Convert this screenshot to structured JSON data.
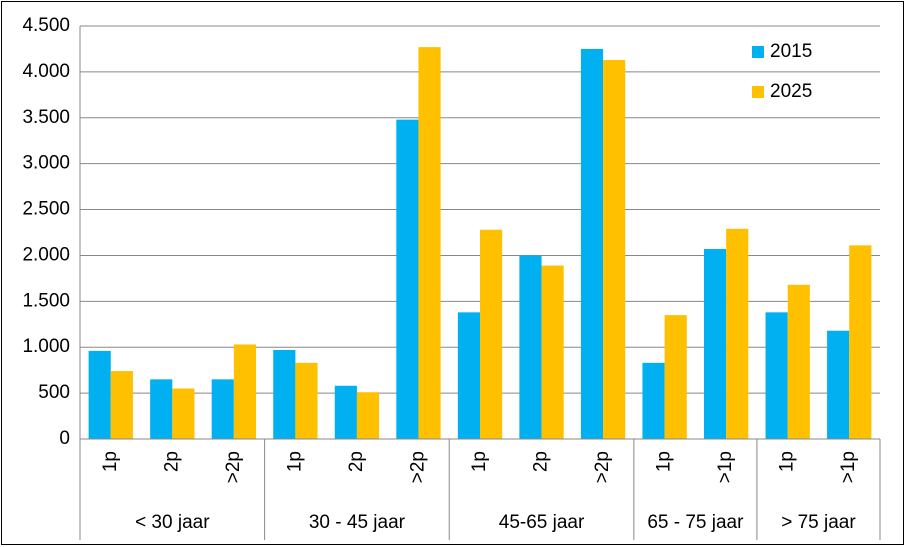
{
  "chart_data": {
    "type": "bar",
    "groups": [
      {
        "name": "< 30 jaar",
        "categories": [
          "1p",
          "2p",
          ">2p"
        ]
      },
      {
        "name": "30 - 45 jaar",
        "categories": [
          "1p",
          "2p",
          ">2p"
        ]
      },
      {
        "name": "45-65 jaar",
        "categories": [
          "1p",
          "2p",
          ">2p"
        ]
      },
      {
        "name": "65 - 75 jaar",
        "categories": [
          "1p",
          ">1p"
        ]
      },
      {
        "name": "> 75 jaar",
        "categories": [
          "1p",
          ">1p"
        ]
      }
    ],
    "series": [
      {
        "name": "2015",
        "color": "#00b0f0",
        "values": [
          960,
          650,
          650,
          970,
          580,
          3480,
          1380,
          2000,
          4250,
          830,
          2070,
          1380,
          1180
        ]
      },
      {
        "name": "2025",
        "color": "#ffc000",
        "values": [
          740,
          550,
          1030,
          830,
          510,
          4270,
          2280,
          1890,
          4130,
          1350,
          2290,
          1680,
          2110
        ]
      }
    ],
    "ylim": [
      0,
      4500
    ],
    "yticks": [
      0,
      500,
      {
        "value": 1000,
        "label": "1.000"
      },
      {
        "value": 1500,
        "label": "1.500"
      },
      {
        "value": 2000,
        "label": "2.000"
      },
      {
        "value": 2500,
        "label": "2.500"
      },
      {
        "value": 3000,
        "label": "3.000"
      },
      {
        "value": 3500,
        "label": "3.500"
      },
      {
        "value": 4000,
        "label": "4.000"
      },
      {
        "value": 4500,
        "label": "4.500"
      }
    ],
    "grid": true,
    "legend": "upper right"
  }
}
